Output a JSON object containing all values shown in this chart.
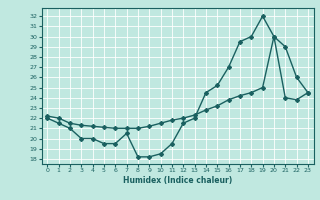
{
  "xlabel": "Humidex (Indice chaleur)",
  "bg_color": "#c0e8e0",
  "line_color": "#1a6060",
  "grid_color": "#a8d8d0",
  "ylim": [
    17.5,
    32.8
  ],
  "xlim": [
    -0.5,
    23.5
  ],
  "yticks": [
    18,
    19,
    20,
    21,
    22,
    23,
    24,
    25,
    26,
    27,
    28,
    29,
    30,
    31,
    32
  ],
  "xticks": [
    0,
    1,
    2,
    3,
    4,
    5,
    6,
    7,
    8,
    9,
    10,
    11,
    12,
    13,
    14,
    15,
    16,
    17,
    18,
    19,
    20,
    21,
    22,
    23
  ],
  "curve1_x": [
    0,
    1,
    2,
    3,
    4,
    5,
    6,
    7,
    8,
    9,
    10,
    11,
    12,
    13,
    14,
    15,
    16,
    17,
    18,
    19,
    20,
    21,
    22,
    23
  ],
  "curve1_y": [
    22,
    21.5,
    21,
    20,
    20,
    19.5,
    19.5,
    20.5,
    18.2,
    18.2,
    18.5,
    19.5,
    21.5,
    22,
    24.5,
    25.2,
    27,
    29.5,
    30,
    32,
    30,
    29,
    26,
    24.5
  ],
  "curve2_x": [
    0,
    1,
    2,
    3,
    4,
    5,
    6,
    7,
    8,
    9,
    10,
    11,
    12,
    13,
    14,
    15,
    16,
    17,
    18,
    19,
    20,
    21,
    22,
    23
  ],
  "curve2_y": [
    22.2,
    22.0,
    21.5,
    21.3,
    21.2,
    21.1,
    21.0,
    21.0,
    21.0,
    21.2,
    21.5,
    21.8,
    22.0,
    22.3,
    22.8,
    23.2,
    23.8,
    24.2,
    24.5,
    25.0,
    30.0,
    24.0,
    23.8,
    24.5
  ]
}
